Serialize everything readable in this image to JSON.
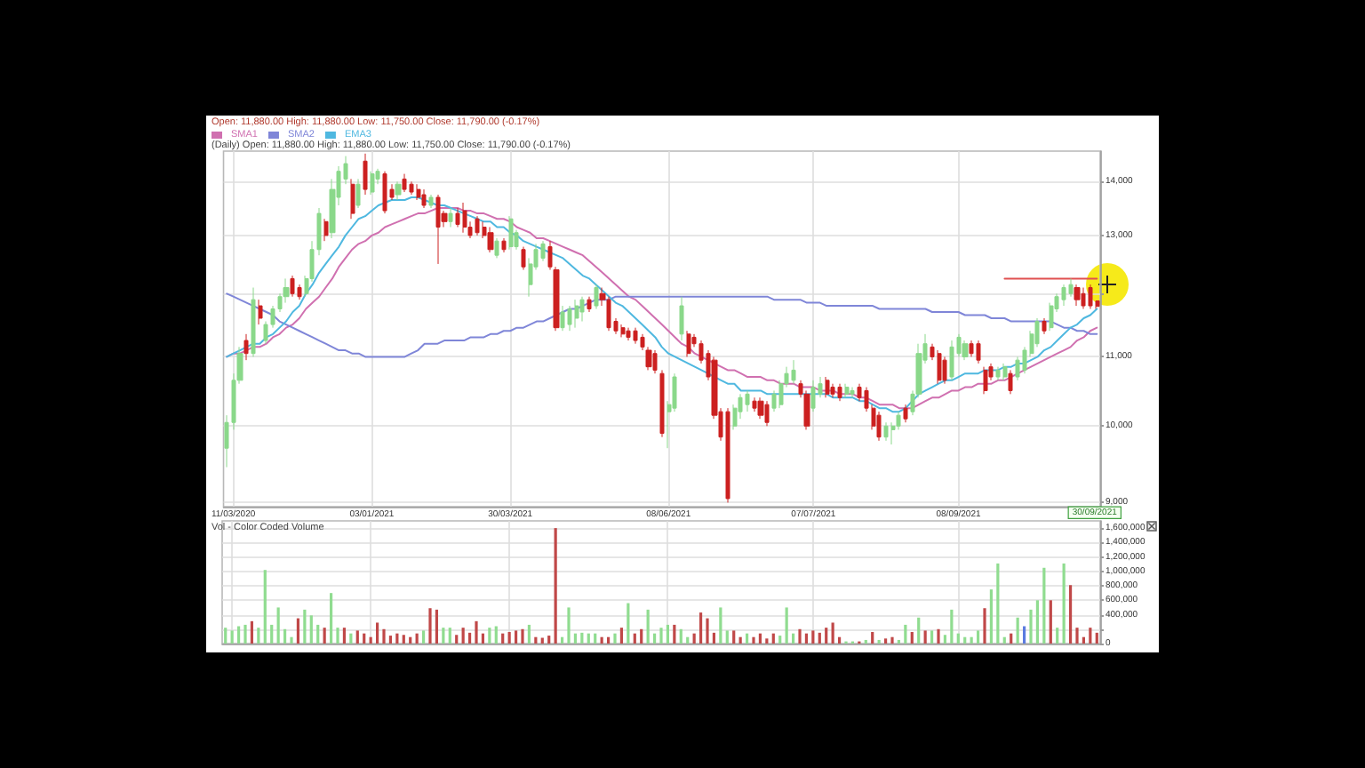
{
  "chart_data": [
    {
      "type": "candlestick",
      "title": "Open: 11,880.00 High: 11,880.00 Low: 11,750.00 Close: 11,790.00 (-0.17%)",
      "subtitle": "(Daily) Open: 11,880.00 High: 11,880.00 Low: 11,750.00 Close: 11,790.00 (-0.17%)",
      "annotations": [
        "30/09/2021"
      ],
      "categories": [
        null,
        "11/03/2020",
        null,
        null,
        null,
        null,
        null,
        null,
        null,
        null,
        null,
        null,
        null,
        null,
        null,
        null,
        null,
        null,
        null,
        null,
        null,
        null,
        "03/01/2021",
        null,
        null,
        null,
        null,
        null,
        null,
        null,
        null,
        null,
        null,
        null,
        null,
        null,
        null,
        null,
        null,
        null,
        null,
        null,
        null,
        "30/03/2021",
        null,
        null,
        null,
        null,
        null,
        null,
        null,
        null,
        null,
        null,
        null,
        null,
        null,
        null,
        null,
        null,
        null,
        null,
        null,
        null,
        null,
        null,
        null,
        "08/06/2021",
        null,
        null,
        null,
        null,
        null,
        null,
        null,
        null,
        null,
        null,
        null,
        null,
        null,
        null,
        null,
        null,
        null,
        null,
        null,
        null,
        null,
        "07/07/2021",
        null,
        null,
        null,
        null,
        null,
        null,
        null,
        null,
        null,
        null,
        null,
        null,
        null,
        null,
        null,
        null,
        null,
        null,
        null,
        null,
        null,
        "08/09/2021",
        null,
        null,
        null,
        null,
        null,
        null,
        null,
        null,
        null,
        null,
        null,
        null,
        null,
        null,
        null,
        null,
        null,
        null,
        null,
        null,
        null
      ],
      "ohlc": [
        [
          9700,
          10150,
          9450,
          10050
        ],
        [
          10050,
          10750,
          9950,
          10650
        ],
        [
          10650,
          11150,
          10600,
          11050
        ],
        [
          11250,
          11350,
          10950,
          11050
        ],
        [
          11050,
          12100,
          11000,
          11900
        ],
        [
          11800,
          11900,
          11500,
          11600
        ],
        [
          11250,
          11550,
          11200,
          11500
        ],
        [
          11500,
          11800,
          11450,
          11750
        ],
        [
          11750,
          12000,
          11700,
          11950
        ],
        [
          11950,
          12250,
          11850,
          12100
        ],
        [
          12250,
          12300,
          11950,
          12000
        ],
        [
          12100,
          12150,
          11900,
          11950
        ],
        [
          12000,
          12300,
          11950,
          12250
        ],
        [
          12250,
          12900,
          12200,
          12750
        ],
        [
          12750,
          13500,
          12650,
          13400
        ],
        [
          13250,
          13300,
          12900,
          13000
        ],
        [
          13050,
          14050,
          12950,
          13850
        ],
        [
          13700,
          14300,
          13550,
          14200
        ],
        [
          14050,
          14500,
          13950,
          14350
        ],
        [
          13950,
          14050,
          13300,
          13400
        ],
        [
          13550,
          14050,
          13500,
          13950
        ],
        [
          14400,
          14550,
          13750,
          13850
        ],
        [
          13800,
          14200,
          13750,
          14150
        ],
        [
          14050,
          14250,
          13950,
          14200
        ],
        [
          14150,
          14200,
          13400,
          13450
        ],
        [
          13850,
          13950,
          13650,
          13700
        ],
        [
          13750,
          14000,
          13650,
          13950
        ],
        [
          14050,
          14150,
          13800,
          13850
        ],
        [
          13950,
          14000,
          13750,
          13800
        ],
        [
          13850,
          13950,
          13650,
          13700
        ],
        [
          13750,
          13850,
          13500,
          13550
        ],
        [
          13550,
          13750,
          13500,
          13700
        ],
        [
          13700,
          13750,
          12500,
          13150
        ],
        [
          13400,
          13450,
          13150,
          13250
        ],
        [
          13250,
          13500,
          13150,
          13400
        ],
        [
          13400,
          13500,
          13150,
          13200
        ],
        [
          13450,
          13600,
          13050,
          13150
        ],
        [
          13150,
          13250,
          12950,
          13000
        ],
        [
          13300,
          13350,
          13000,
          13050
        ],
        [
          13150,
          13250,
          12950,
          13000
        ],
        [
          13050,
          13150,
          12700,
          12750
        ],
        [
          12650,
          12950,
          12600,
          12900
        ],
        [
          12900,
          12950,
          12700,
          12750
        ],
        [
          12800,
          13350,
          12750,
          13300
        ],
        [
          12800,
          13100,
          12750,
          13050
        ],
        [
          12750,
          12800,
          12400,
          12450
        ],
        [
          12150,
          12600,
          11950,
          12500
        ],
        [
          12450,
          12850,
          12400,
          12750
        ],
        [
          12600,
          12900,
          12550,
          12850
        ],
        [
          12800,
          12900,
          12400,
          12450
        ],
        [
          12400,
          12450,
          11400,
          11450
        ],
        [
          11450,
          11800,
          11400,
          11700
        ],
        [
          11500,
          11800,
          11400,
          11750
        ],
        [
          11600,
          11900,
          11450,
          11800
        ],
        [
          11700,
          11950,
          11550,
          11900
        ],
        [
          11900,
          11950,
          11700,
          11750
        ],
        [
          11800,
          12150,
          11750,
          12100
        ],
        [
          12000,
          12100,
          11800,
          11900
        ],
        [
          11900,
          11950,
          11400,
          11450
        ],
        [
          11550,
          11600,
          11350,
          11400
        ],
        [
          11450,
          11500,
          11300,
          11350
        ],
        [
          11400,
          11450,
          11250,
          11300
        ],
        [
          11400,
          11450,
          11200,
          11250
        ],
        [
          11300,
          11350,
          11100,
          11150
        ],
        [
          11100,
          11150,
          10800,
          10850
        ],
        [
          11050,
          11100,
          10750,
          10800
        ],
        [
          10750,
          10800,
          9850,
          9900
        ],
        [
          10200,
          10350,
          9700,
          10300
        ],
        [
          10250,
          10750,
          10200,
          10700
        ],
        [
          11350,
          11950,
          11250,
          11800
        ],
        [
          11350,
          11400,
          11000,
          11050
        ],
        [
          11300,
          11350,
          11150,
          11200
        ],
        [
          11200,
          11250,
          10900,
          10950
        ],
        [
          11050,
          11100,
          10650,
          10700
        ],
        [
          10950,
          11000,
          10100,
          10150
        ],
        [
          10200,
          10250,
          9800,
          9850
        ],
        [
          10200,
          10250,
          9000,
          9050
        ],
        [
          10000,
          10300,
          9950,
          10250
        ],
        [
          10200,
          10450,
          10100,
          10400
        ],
        [
          10300,
          10500,
          10200,
          10450
        ],
        [
          10350,
          10400,
          10200,
          10250
        ],
        [
          10350,
          10400,
          10100,
          10150
        ],
        [
          10300,
          10350,
          10000,
          10050
        ],
        [
          10250,
          10500,
          10200,
          10450
        ],
        [
          10300,
          10650,
          10250,
          10600
        ],
        [
          10600,
          10850,
          10550,
          10750
        ],
        [
          10650,
          10950,
          10600,
          10800
        ],
        [
          10600,
          10650,
          10400,
          10450
        ],
        [
          10450,
          10500,
          9950,
          10000
        ],
        [
          10250,
          10650,
          10200,
          10550
        ],
        [
          10450,
          10700,
          10400,
          10600
        ],
        [
          10650,
          10700,
          10400,
          10450
        ],
        [
          10550,
          10600,
          10400,
          10450
        ],
        [
          10550,
          10600,
          10350,
          10400
        ],
        [
          10450,
          10600,
          10400,
          10550
        ],
        [
          10450,
          10550,
          10400,
          10500
        ],
        [
          10550,
          10600,
          10350,
          10400
        ],
        [
          10500,
          10550,
          10200,
          10250
        ],
        [
          10250,
          10300,
          9950,
          10000
        ],
        [
          10150,
          10200,
          9800,
          9850
        ],
        [
          9850,
          10050,
          9800,
          10000
        ],
        [
          9950,
          10050,
          9750,
          10000
        ],
        [
          10000,
          10200,
          9950,
          10150
        ],
        [
          10250,
          10300,
          10050,
          10100
        ],
        [
          10200,
          10500,
          10150,
          10450
        ],
        [
          10450,
          11200,
          10400,
          11050
        ],
        [
          10950,
          11350,
          10900,
          11200
        ],
        [
          11150,
          11200,
          10950,
          11000
        ],
        [
          11050,
          11100,
          10600,
          10650
        ],
        [
          10950,
          11000,
          10600,
          10650
        ],
        [
          10700,
          11250,
          10650,
          11150
        ],
        [
          11050,
          11350,
          11000,
          11300
        ],
        [
          11000,
          11250,
          10950,
          11200
        ],
        [
          11200,
          11250,
          11000,
          11050
        ],
        [
          11200,
          11250,
          10900,
          10950
        ],
        [
          10800,
          10850,
          10450,
          10500
        ],
        [
          10850,
          10900,
          10650,
          10700
        ],
        [
          10700,
          10850,
          10650,
          10800
        ],
        [
          10700,
          10900,
          10650,
          10850
        ],
        [
          10750,
          10800,
          10450,
          10500
        ],
        [
          10700,
          11000,
          10650,
          10950
        ],
        [
          10800,
          11150,
          10750,
          11100
        ],
        [
          11050,
          11400,
          11000,
          11350
        ],
        [
          11200,
          11600,
          11150,
          11550
        ],
        [
          11550,
          11600,
          11350,
          11400
        ],
        [
          11450,
          11850,
          11400,
          11800
        ],
        [
          11750,
          12000,
          11700,
          11950
        ],
        [
          11900,
          12150,
          11800,
          12100
        ],
        [
          12000,
          12250,
          11950,
          12150
        ],
        [
          12100,
          12150,
          11800,
          11900
        ],
        [
          12000,
          12100,
          11750,
          11800
        ],
        [
          12100,
          12150,
          11750,
          11800
        ],
        [
          11880,
          11880,
          11750,
          11790
        ]
      ],
      "colors": [
        "#8ad88a",
        "#8ad88a",
        "#8ad88a",
        "#cc2020",
        "#8ad88a",
        "#cc2020",
        "#8ad88a",
        "#8ad88a",
        "#8ad88a",
        "#8ad88a",
        "#cc2020",
        "#cc2020",
        "#8ad88a",
        "#8ad88a",
        "#8ad88a",
        "#cc2020",
        "#8ad88a",
        "#8ad88a",
        "#8ad88a",
        "#cc2020",
        "#8ad88a",
        "#cc2020",
        "#8ad88a",
        "#8ad88a",
        "#cc2020",
        "#cc2020",
        "#8ad88a",
        "#cc2020",
        "#cc2020",
        "#cc2020",
        "#cc2020",
        "#8ad88a",
        "#cc2020",
        "#cc2020",
        "#8ad88a",
        "#cc2020",
        "#cc2020",
        "#cc2020",
        "#cc2020",
        "#cc2020",
        "#cc2020",
        "#8ad88a",
        "#cc2020",
        "#8ad88a",
        "#8ad88a",
        "#cc2020",
        "#8ad88a",
        "#8ad88a",
        "#8ad88a",
        "#cc2020",
        "#cc2020",
        "#8ad88a",
        "#8ad88a",
        "#8ad88a",
        "#8ad88a",
        "#cc2020",
        "#8ad88a",
        "#cc2020",
        "#cc2020",
        "#cc2020",
        "#cc2020",
        "#cc2020",
        "#cc2020",
        "#cc2020",
        "#cc2020",
        "#cc2020",
        "#cc2020",
        "#8ad88a",
        "#8ad88a",
        "#8ad88a",
        "#cc2020",
        "#cc2020",
        "#cc2020",
        "#cc2020",
        "#cc2020",
        "#cc2020",
        "#cc2020",
        "#8ad88a",
        "#8ad88a",
        "#8ad88a",
        "#cc2020",
        "#cc2020",
        "#cc2020",
        "#8ad88a",
        "#8ad88a",
        "#8ad88a",
        "#8ad88a",
        "#cc2020",
        "#cc2020",
        "#8ad88a",
        "#8ad88a",
        "#cc2020",
        "#cc2020",
        "#cc2020",
        "#8ad88a",
        "#8ad88a",
        "#cc2020",
        "#cc2020",
        "#cc2020",
        "#cc2020",
        "#8ad88a",
        "#8ad88a",
        "#8ad88a",
        "#cc2020",
        "#8ad88a",
        "#8ad88a",
        "#8ad88a",
        "#cc2020",
        "#cc2020",
        "#cc2020",
        "#8ad88a",
        "#8ad88a",
        "#8ad88a",
        "#cc2020",
        "#cc2020",
        "#cc2020",
        "#cc2020",
        "#8ad88a",
        "#8ad88a",
        "#cc2020",
        "#8ad88a",
        "#8ad88a",
        "#8ad88a",
        "#8ad88a",
        "#cc2020",
        "#8ad88a",
        "#8ad88a",
        "#8ad88a",
        "#8ad88a",
        "#cc2020",
        "#cc2020",
        "#cc2020",
        "#cc2020"
      ],
      "series": [
        {
          "name": "SMA1",
          "type": "line",
          "color": "#d070b0",
          "values": [
            11000,
            11050,
            11050,
            11100,
            11150,
            11150,
            11200,
            11300,
            11350,
            11450,
            11500,
            11600,
            11750,
            11850,
            11950,
            12100,
            12250,
            12450,
            12600,
            12750,
            12850,
            12900,
            13000,
            13050,
            13150,
            13200,
            13250,
            13300,
            13350,
            13400,
            13400,
            13450,
            13500,
            13500,
            13500,
            13500,
            13450,
            13450,
            13400,
            13400,
            13350,
            13300,
            13300,
            13250,
            13150,
            13100,
            13050,
            12950,
            12950,
            12900,
            12850,
            12800,
            12750,
            12700,
            12650,
            12550,
            12450,
            12350,
            12250,
            12150,
            12050,
            11950,
            11900,
            11800,
            11700,
            11600,
            11500,
            11400,
            11300,
            11200,
            11150,
            11050,
            11000,
            10950,
            10900,
            10850,
            10800,
            10800,
            10750,
            10700,
            10700,
            10700,
            10650,
            10650,
            10600,
            10600,
            10600,
            10550,
            10550,
            10550,
            10500,
            10500,
            10500,
            10450,
            10450,
            10450,
            10400,
            10400,
            10350,
            10300,
            10300,
            10300,
            10250,
            10250,
            10250,
            10300,
            10350,
            10400,
            10400,
            10450,
            10500,
            10500,
            10550,
            10550,
            10600,
            10600,
            10600,
            10650,
            10650,
            10700,
            10750,
            10800,
            10850,
            10900,
            10950,
            11000,
            11050,
            11100,
            11150,
            11250,
            11300,
            11400,
            11450
          ]
        },
        {
          "name": "SMA2",
          "type": "line",
          "color": "#7f86d8",
          "values": [
            12000,
            11950,
            11900,
            11850,
            11800,
            11750,
            11700,
            11650,
            11550,
            11500,
            11450,
            11400,
            11350,
            11300,
            11250,
            11200,
            11150,
            11100,
            11100,
            11050,
            11050,
            11000,
            11000,
            11000,
            11000,
            11000,
            11000,
            11000,
            11050,
            11100,
            11200,
            11200,
            11200,
            11250,
            11250,
            11250,
            11250,
            11300,
            11300,
            11300,
            11350,
            11350,
            11400,
            11400,
            11450,
            11450,
            11500,
            11550,
            11550,
            11600,
            11650,
            11700,
            11750,
            11750,
            11800,
            11850,
            11900,
            11900,
            11900,
            11950,
            11950,
            11950,
            11950,
            11950,
            11950,
            11950,
            11950,
            11950,
            11950,
            11950,
            11950,
            11950,
            11950,
            11950,
            11950,
            11950,
            11950,
            11950,
            11950,
            11950,
            11950,
            11950,
            11950,
            11900,
            11900,
            11900,
            11900,
            11900,
            11850,
            11850,
            11850,
            11800,
            11800,
            11800,
            11800,
            11800,
            11800,
            11800,
            11800,
            11750,
            11750,
            11750,
            11750,
            11750,
            11750,
            11750,
            11750,
            11700,
            11700,
            11700,
            11700,
            11700,
            11650,
            11650,
            11650,
            11650,
            11600,
            11600,
            11600,
            11550,
            11550,
            11550,
            11550,
            11550,
            11550,
            11550,
            11500,
            11450,
            11450,
            11400,
            11400,
            11350,
            11350
          ]
        },
        {
          "name": "EMA3",
          "type": "line",
          "color": "#4fb8e0",
          "values": [
            11000,
            11050,
            11100,
            11150,
            11200,
            11200,
            11300,
            11350,
            11450,
            11550,
            11700,
            11800,
            12000,
            12150,
            12350,
            12500,
            12650,
            12800,
            13000,
            13150,
            13300,
            13350,
            13450,
            13550,
            13600,
            13650,
            13650,
            13650,
            13700,
            13700,
            13650,
            13600,
            13550,
            13550,
            13500,
            13450,
            13400,
            13350,
            13300,
            13250,
            13250,
            13150,
            13150,
            13050,
            13000,
            12900,
            12850,
            12800,
            12750,
            12700,
            12650,
            12600,
            12500,
            12400,
            12300,
            12250,
            12150,
            12050,
            11950,
            11850,
            11800,
            11700,
            11600,
            11500,
            11400,
            11300,
            11150,
            11050,
            11000,
            10950,
            10900,
            10850,
            10800,
            10750,
            10700,
            10650,
            10600,
            10600,
            10500,
            10500,
            10500,
            10500,
            10450,
            10450,
            10450,
            10450,
            10450,
            10450,
            10450,
            10450,
            10450,
            10450,
            10400,
            10400,
            10400,
            10400,
            10350,
            10350,
            10300,
            10250,
            10250,
            10200,
            10200,
            10250,
            10350,
            10450,
            10500,
            10550,
            10600,
            10650,
            10650,
            10700,
            10750,
            10750,
            10750,
            10800,
            10800,
            10800,
            10850,
            10850,
            10900,
            10900,
            10950,
            11000,
            11100,
            11150,
            11250,
            11350,
            11450,
            11500,
            11600,
            11650,
            11750
          ]
        },
        {
          "type": "line",
          "color": "#e05050",
          "values": [
            null,
            null,
            null,
            null,
            null,
            null,
            null,
            null,
            null,
            null,
            null,
            null,
            null,
            null,
            null,
            null,
            null,
            null,
            null,
            null,
            null,
            null,
            null,
            null,
            null,
            null,
            null,
            null,
            null,
            null,
            null,
            null,
            null,
            null,
            null,
            null,
            null,
            null,
            null,
            null,
            null,
            null,
            null,
            null,
            null,
            null,
            null,
            null,
            null,
            null,
            null,
            null,
            null,
            null,
            null,
            null,
            null,
            null,
            null,
            null,
            null,
            null,
            null,
            null,
            null,
            null,
            null,
            null,
            null,
            null,
            null,
            null,
            null,
            null,
            null,
            null,
            null,
            null,
            null,
            null,
            null,
            null,
            null,
            null,
            null,
            null,
            null,
            null,
            null,
            null,
            null,
            null,
            null,
            null,
            null,
            null,
            null,
            null,
            null,
            null,
            null,
            null,
            null,
            null,
            null,
            null,
            null,
            null,
            null,
            null,
            null,
            null,
            null,
            null,
            null,
            null,
            null,
            null,
            12250,
            12250,
            12250,
            12250,
            12250,
            12250,
            12250,
            12250,
            12250,
            12250,
            12250,
            12250,
            12250,
            12250,
            12250
          ]
        }
      ],
      "ylim": [
        8950,
        14600
      ],
      "yticks": [
        {
          "value": 9000,
          "label": "9,000"
        },
        {
          "value": 10000,
          "label": "10,000"
        },
        {
          "value": 11000,
          "label": "11,000"
        },
        {
          "value": 12000,
          "label": null
        },
        {
          "value": 13000,
          "label": "13,000"
        },
        {
          "value": 14000,
          "label": "14,000"
        }
      ],
      "log": true,
      "grid": true,
      "legend": "top left"
    },
    {
      "type": "bar",
      "title": "Vol - Color Coded Volume",
      "categories": [
        null,
        null,
        null,
        null,
        null,
        null,
        null,
        null,
        null,
        null,
        null,
        null,
        null,
        null,
        null,
        null,
        null,
        null,
        null,
        null,
        null,
        null,
        null,
        null,
        null,
        null,
        null,
        null,
        null,
        null,
        null,
        null,
        null,
        null,
        null,
        null,
        null,
        null,
        null,
        null,
        null,
        null,
        null,
        null,
        null,
        null,
        null,
        null,
        null,
        null,
        null,
        null,
        null,
        null,
        null,
        null,
        null,
        null,
        null,
        null,
        null,
        null,
        null,
        null,
        null,
        null,
        null,
        null,
        null,
        null,
        null,
        null,
        null,
        null,
        null,
        null,
        null,
        null,
        null,
        null,
        null,
        null,
        null,
        null,
        null,
        null,
        null,
        null,
        null,
        null,
        null,
        null,
        null,
        null,
        null,
        null,
        null,
        null,
        null,
        null,
        null,
        null,
        null,
        null,
        null,
        null,
        null,
        null,
        null,
        null,
        null,
        null,
        null,
        null,
        null,
        null,
        null,
        null,
        null,
        null,
        null,
        null,
        null,
        null,
        null,
        null,
        null,
        null,
        null,
        null,
        null,
        null,
        null
      ],
      "values": [
        220000,
        180000,
        240000,
        260000,
        310000,
        220000,
        1020000,
        260000,
        500000,
        200000,
        90000,
        350000,
        470000,
        390000,
        260000,
        220000,
        700000,
        220000,
        220000,
        140000,
        180000,
        140000,
        90000,
        290000,
        200000,
        110000,
        140000,
        120000,
        90000,
        140000,
        180000,
        490000,
        470000,
        220000,
        220000,
        120000,
        220000,
        150000,
        310000,
        140000,
        220000,
        240000,
        140000,
        160000,
        180000,
        200000,
        260000,
        90000,
        80000,
        110000,
        1600000,
        90000,
        500000,
        140000,
        150000,
        140000,
        140000,
        90000,
        90000,
        140000,
        220000,
        560000,
        140000,
        200000,
        470000,
        140000,
        220000,
        260000,
        260000,
        200000,
        90000,
        140000,
        430000,
        350000,
        150000,
        500000,
        180000,
        180000,
        90000,
        140000,
        90000,
        140000,
        70000,
        140000,
        110000,
        500000,
        140000,
        200000,
        140000,
        180000,
        150000,
        220000,
        290000,
        90000,
        30000,
        30000,
        30000,
        50000,
        160000,
        50000,
        70000,
        90000,
        50000,
        260000,
        160000,
        360000,
        180000,
        180000,
        200000,
        120000,
        470000,
        140000,
        90000,
        90000,
        180000,
        490000,
        750000,
        1110000,
        90000,
        140000,
        360000,
        240000,
        470000,
        600000,
        1050000,
        600000,
        220000,
        1110000,
        810000,
        220000,
        90000,
        220000,
        150000
      ],
      "colors": [
        "#90dc90",
        "#90dc90",
        "#90dc90",
        "#90dc90",
        "#c04848",
        "#90dc90",
        "#90dc90",
        "#90dc90",
        "#90dc90",
        "#90dc90",
        "#90dc90",
        "#c04848",
        "#90dc90",
        "#90dc90",
        "#90dc90",
        "#c04848",
        "#90dc90",
        "#90dc90",
        "#c04848",
        "#90dc90",
        "#c04848",
        "#c04848",
        "#c04848",
        "#c04848",
        "#c04848",
        "#c04848",
        "#c04848",
        "#c04848",
        "#c04848",
        "#c04848",
        "#90dc90",
        "#c04848",
        "#c04848",
        "#90dc90",
        "#90dc90",
        "#c04848",
        "#c04848",
        "#c04848",
        "#c04848",
        "#c04848",
        "#90dc90",
        "#90dc90",
        "#c04848",
        "#c04848",
        "#c04848",
        "#c04848",
        "#90dc90",
        "#c04848",
        "#c04848",
        "#c04848",
        "#c04848",
        "#90dc90",
        "#90dc90",
        "#90dc90",
        "#90dc90",
        "#90dc90",
        "#90dc90",
        "#c04848",
        "#c04848",
        "#90dc90",
        "#c04848",
        "#90dc90",
        "#c04848",
        "#c04848",
        "#90dc90",
        "#90dc90",
        "#90dc90",
        "#90dc90",
        "#c04848",
        "#90dc90",
        "#90dc90",
        "#c04848",
        "#c04848",
        "#c04848",
        "#c04848",
        "#90dc90",
        "#90dc90",
        "#c04848",
        "#c04848",
        "#90dc90",
        "#c04848",
        "#c04848",
        "#c04848",
        "#c04848",
        "#90dc90",
        "#90dc90",
        "#90dc90",
        "#c04848",
        "#c04848",
        "#c04848",
        "#c04848",
        "#c04848",
        "#c04848",
        "#c04848",
        "#90dc90",
        "#90dc90",
        "#c04848",
        "#90dc90",
        "#c04848",
        "#90dc90",
        "#c04848",
        "#c04848",
        "#90dc90",
        "#90dc90",
        "#c04848",
        "#90dc90",
        "#c04848",
        "#90dc90",
        "#c04848",
        "#90dc90",
        "#90dc90",
        "#90dc90",
        "#90dc90",
        "#90dc90",
        "#90dc90",
        "#c04848",
        "#90dc90",
        "#90dc90",
        "#90dc90",
        "#c04848",
        "#90dc90",
        "#5b7be0",
        "#90dc90",
        "#90dc90",
        "#90dc90",
        "#c04848",
        "#90dc90",
        "#90dc90",
        "#c04848",
        "#c04848",
        "#c04848",
        "#c04848",
        "#c04848"
      ],
      "ylim": [
        0,
        1700000
      ],
      "yticks": [
        0,
        {
          "value": 200000,
          "label": null
        },
        {
          "value": 400000,
          "label": "400,000"
        },
        {
          "value": 600000,
          "label": "600,000"
        },
        {
          "value": 800000,
          "label": "800,000"
        },
        {
          "value": 1000000,
          "label": "1,000,000"
        },
        {
          "value": 1200000,
          "label": "1,200,000"
        },
        {
          "value": 1400000,
          "label": "1,400,000"
        },
        {
          "value": 1600000,
          "label": "1,600,000"
        }
      ],
      "grid": true
    }
  ]
}
